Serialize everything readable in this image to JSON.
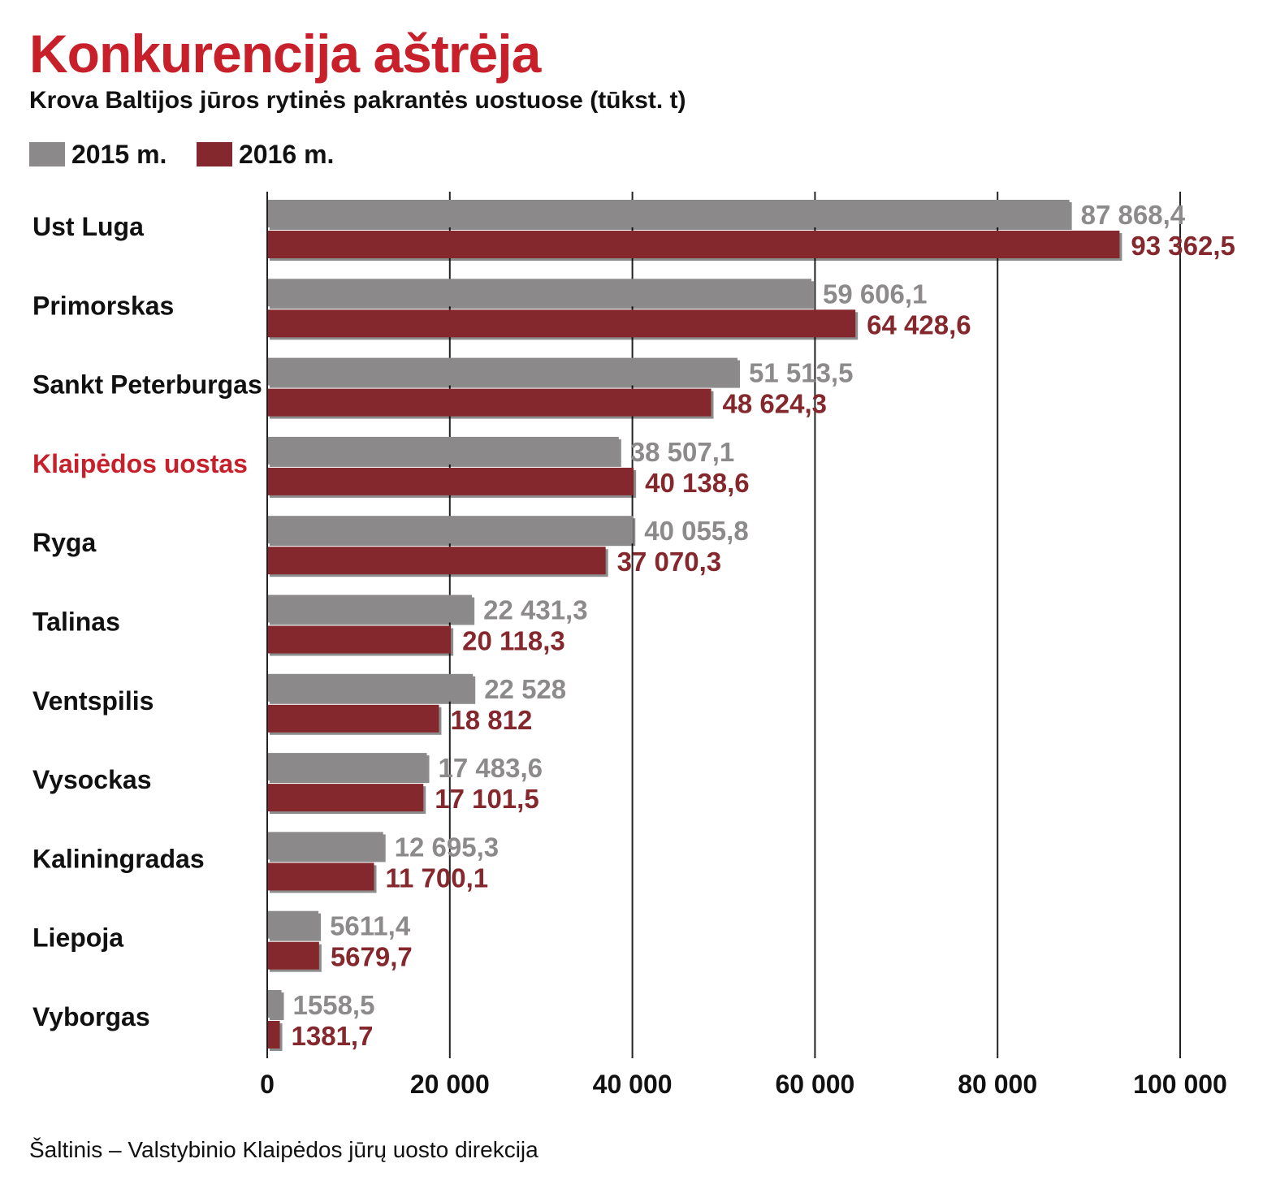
{
  "colors": {
    "title": "#c8202b",
    "series_2015": "#8c898a",
    "series_2016": "#85282d",
    "label_2015": "#8c8a8b",
    "label_2016": "#85282d",
    "highlight_category": "#c8202b",
    "axis": "#222222"
  },
  "chart_data": {
    "type": "bar",
    "orientation": "horizontal",
    "title": "Konkurencija aštrėja",
    "subtitle": "Krova Baltijos jūros rytinės pakrantės uostuose (tūkst. t)",
    "legend_placement": "top-left",
    "categories": [
      "Ust Luga",
      "Primorskas",
      "Sankt Peterburgas",
      "Klaipėdos uostas",
      "Ryga",
      "Talinas",
      "Ventspilis",
      "Vysockas",
      "Kaliningradas",
      "Liepoja",
      "Vyborgas"
    ],
    "highlight_category": "Klaipėdos uostas",
    "series": [
      {
        "name": "2015 m.",
        "values": [
          87868.4,
          59606.1,
          51513.5,
          38507.1,
          40055.8,
          22431.3,
          22528,
          17483.6,
          12695.3,
          5611.4,
          1558.5
        ],
        "labels": [
          "87 868,4",
          "59 606,1",
          "51 513,5",
          "38 507,1",
          "40 055,8",
          "22 431,3",
          "22 528",
          "17 483,6",
          "12 695,3",
          "5611,4",
          "1558,5"
        ]
      },
      {
        "name": "2016 m.",
        "values": [
          93362.5,
          64428.6,
          48624.3,
          40138.6,
          37070.3,
          20118.3,
          18812,
          17101.5,
          11700.1,
          5679.7,
          1381.7
        ],
        "labels": [
          "93 362,5",
          "64 428,6",
          "48 624,3",
          "40 138,6",
          "37 070,3",
          "20 118,3",
          "18 812",
          "17 101,5",
          "11 700,1",
          "5679,7",
          "1381,7"
        ]
      }
    ],
    "xlim": [
      0,
      100000
    ],
    "xticks": [
      0,
      20000,
      40000,
      60000,
      80000,
      100000
    ],
    "xtick_labels": [
      "0",
      "20 000",
      "40 000",
      "60 000",
      "80 000",
      "100 000"
    ],
    "grid": true,
    "xlabel": "",
    "ylabel": ""
  },
  "source": "Šaltinis – Valstybinio Klaipėdos jūrų uosto direkcija"
}
